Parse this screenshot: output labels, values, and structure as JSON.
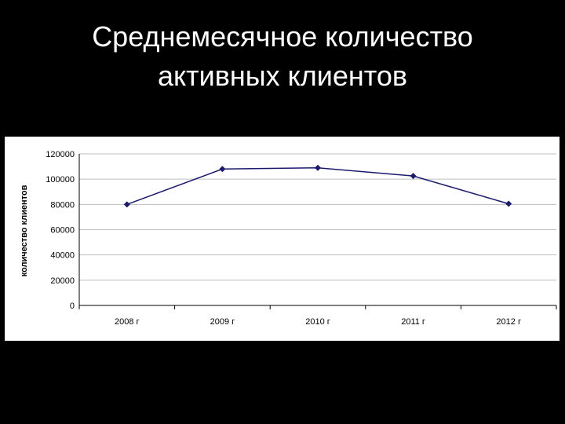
{
  "slide": {
    "title_line1": "Среднемесячное количество",
    "title_line2": "активных клиентов"
  },
  "colors": {
    "background": "#000000",
    "title_text": "#ffffff",
    "panel": "#ffffff",
    "series_line": "#1a1a6e",
    "gridline": "#bfbfbf",
    "axis_text": "#000000"
  },
  "chart_data": {
    "type": "line",
    "title": "",
    "xlabel": "",
    "ylabel": "количество клиентов",
    "categories": [
      "2008 г",
      "2009 г",
      "2010 г",
      "2011 г",
      "2012 г"
    ],
    "series": [
      {
        "values": [
          80000,
          108000,
          109000,
          102500,
          80500
        ],
        "marker": "diamond"
      }
    ],
    "ylim": [
      0,
      120000
    ],
    "yticks": [
      0,
      20000,
      40000,
      60000,
      80000,
      100000,
      120000
    ],
    "grid": true,
    "legend": "none"
  }
}
